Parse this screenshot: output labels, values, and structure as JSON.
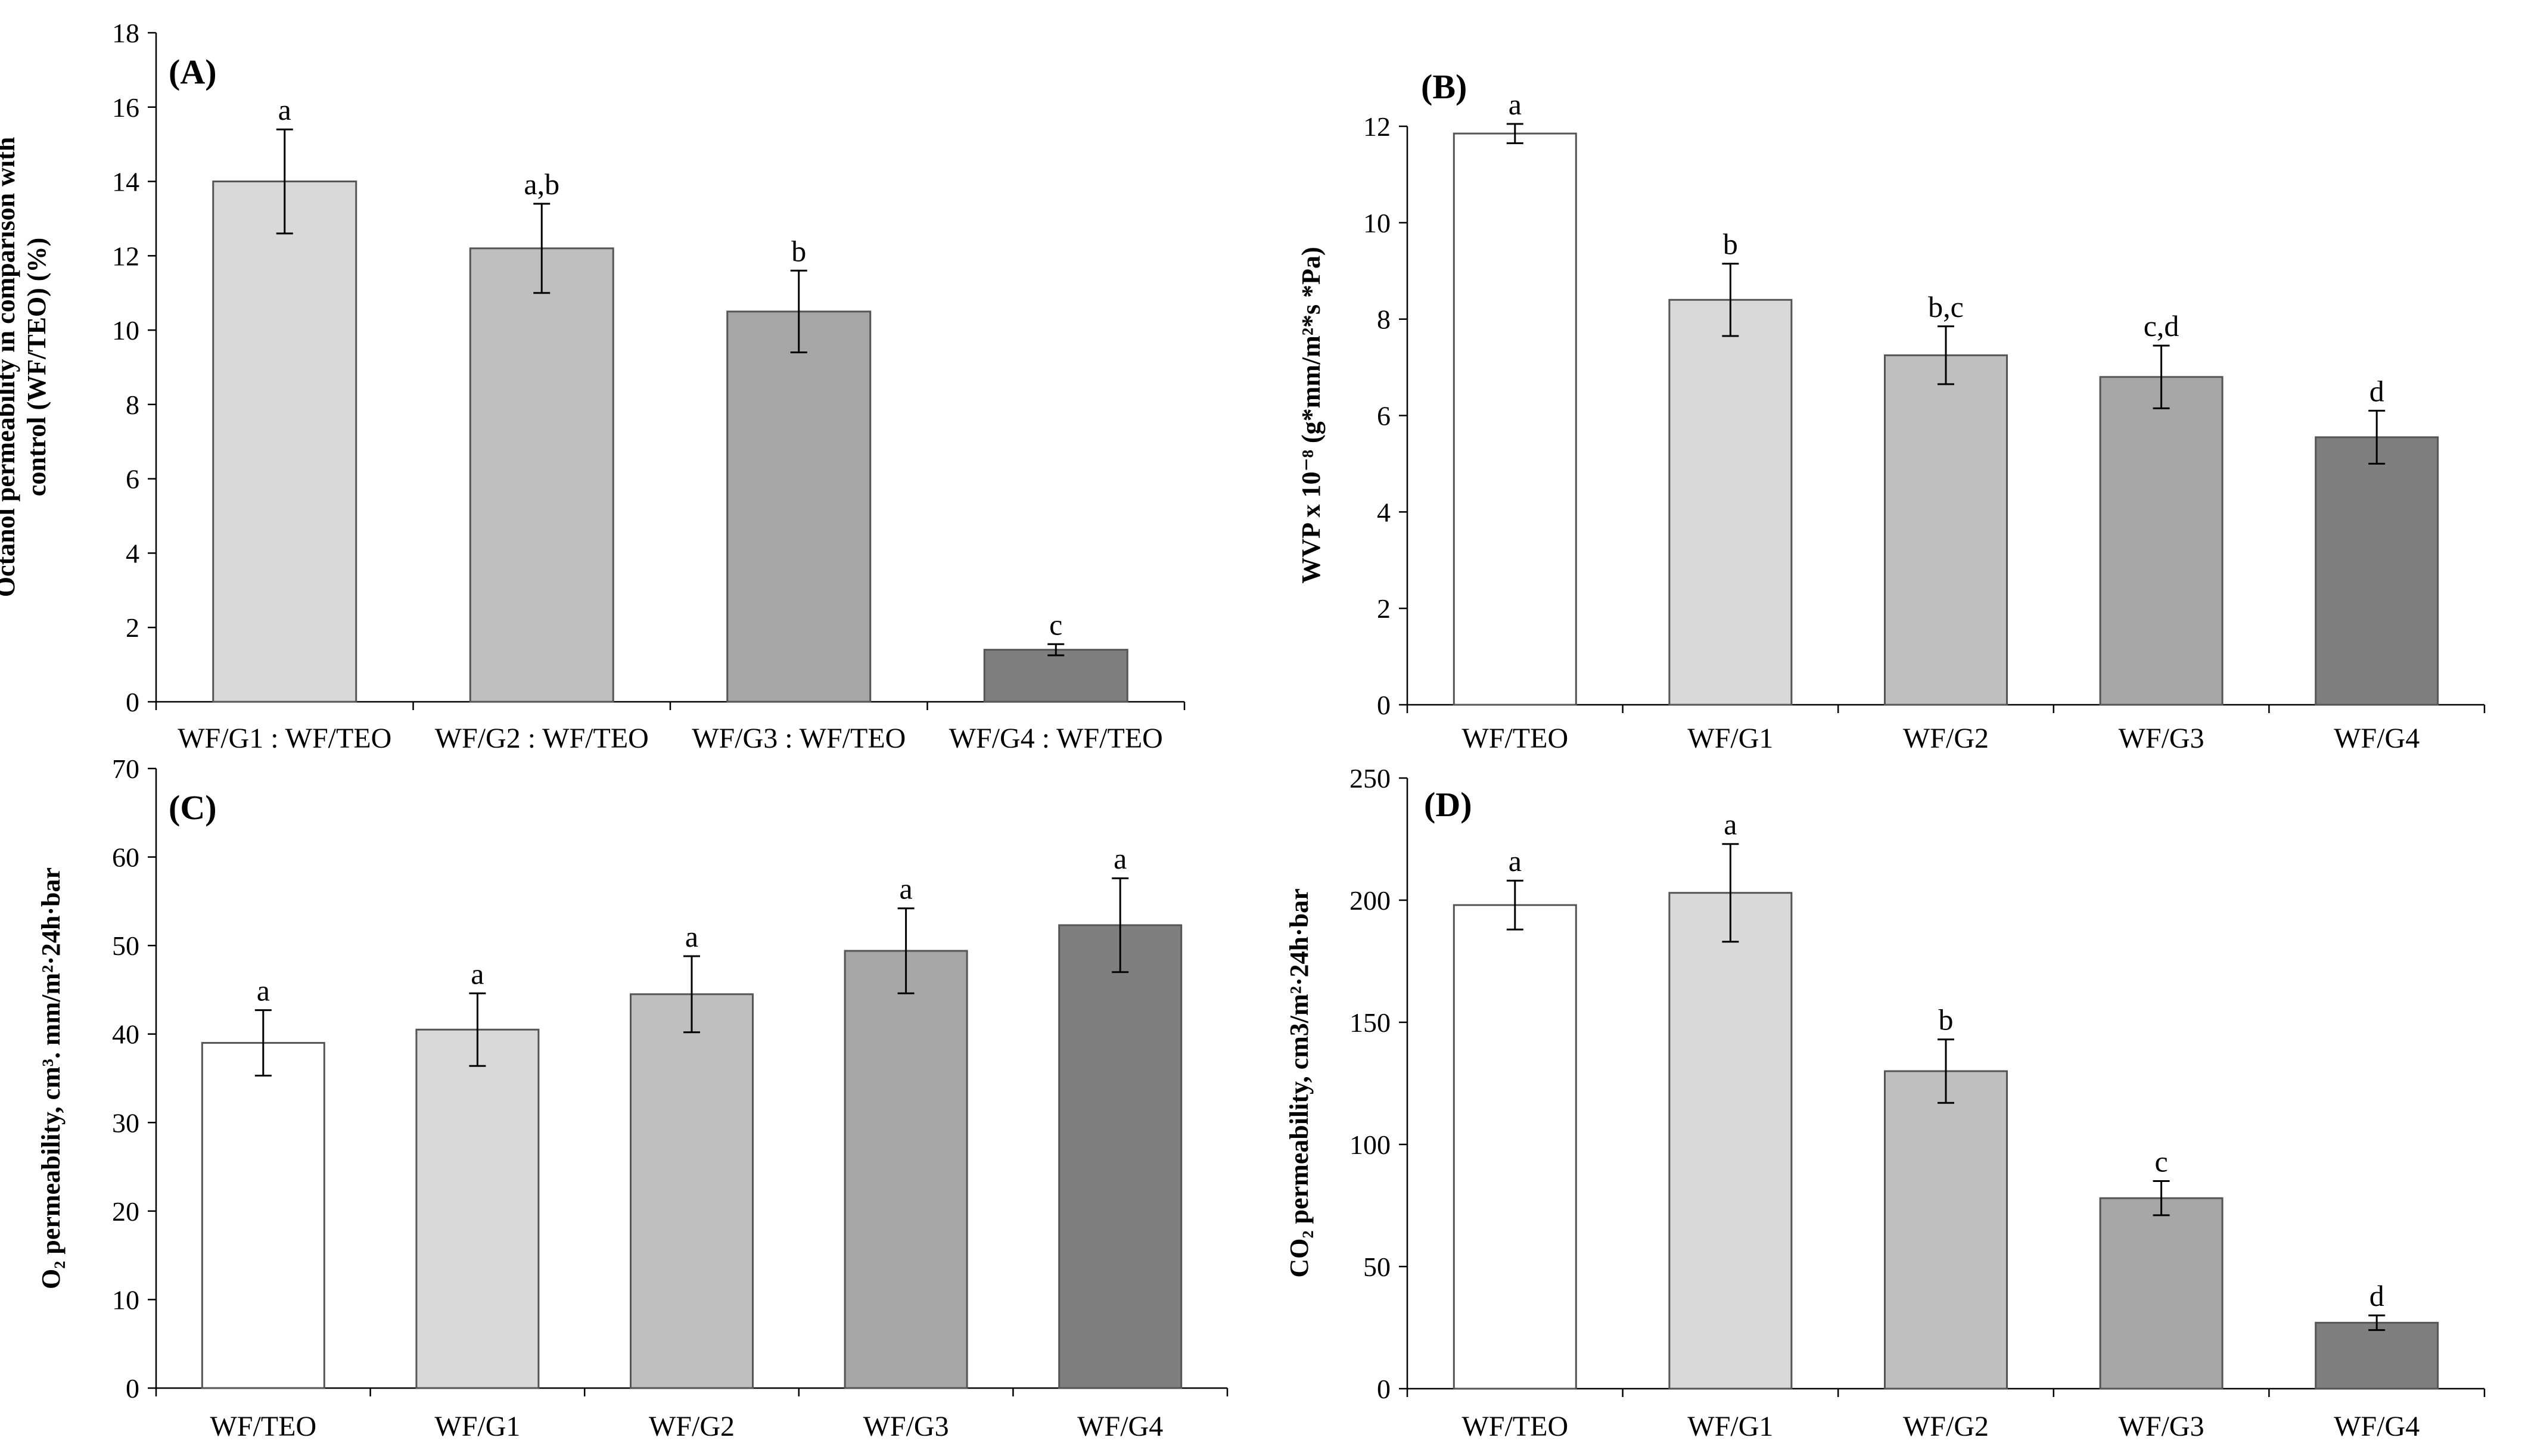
{
  "chart_data": [
    {
      "type": "bar",
      "panel": "(A)",
      "ylabel_lines": [
        "Octanol permeability in comparison with",
        "control (WF/TEO)  (%)"
      ],
      "ylim": [
        0,
        18
      ],
      "yticks": [
        "0",
        "2",
        "4",
        "6",
        "8",
        "10",
        "12",
        "14",
        "16",
        "18"
      ],
      "categories": [
        "WF/G1 : WF/TEO",
        "WF/G2 : WF/TEO",
        "WF/G3 : WF/TEO",
        "WF/G4 : WF/TEO"
      ],
      "values": [
        14.0,
        12.2,
        10.5,
        1.4
      ],
      "errors": [
        1.4,
        1.2,
        1.1,
        0.15
      ],
      "significance": [
        "a",
        "a,b",
        "b",
        "c"
      ],
      "colors": [
        "#d9d9d9",
        "#bfbfbf",
        "#a6a6a6",
        "#7f7f7f"
      ]
    },
    {
      "type": "bar",
      "panel": "(B)",
      "ylabel_lines": [
        "WVP x 10⁻⁸ (g*mm/m²*s *Pa)"
      ],
      "ylim": [
        0,
        12
      ],
      "yticks": [
        "0",
        "2",
        "4",
        "6",
        "8",
        "10",
        "12"
      ],
      "categories": [
        "WF/TEO",
        "WF/G1",
        "WF/G2",
        "WF/G3",
        "WF/G4"
      ],
      "values": [
        11.85,
        8.4,
        7.25,
        6.8,
        5.55
      ],
      "errors": [
        0.2,
        0.75,
        0.6,
        0.65,
        0.55
      ],
      "significance": [
        "a",
        "b",
        "b,c",
        "c,d",
        "d"
      ],
      "colors": [
        "#ffffff",
        "#d9d9d9",
        "#bfbfbf",
        "#a6a6a6",
        "#7f7f7f"
      ]
    },
    {
      "type": "bar",
      "panel": "(C)",
      "ylabel_lines": [
        "O₂ permeability, cm³. mm/m²·24h·bar"
      ],
      "ylim": [
        0,
        70
      ],
      "yticks": [
        "0",
        "10",
        "20",
        "30",
        "40",
        "50",
        "60",
        "70"
      ],
      "categories": [
        "WF/TEO",
        "WF/G1",
        "WF/G2",
        "WF/G3",
        "WF/G4"
      ],
      "values": [
        39.0,
        40.5,
        44.5,
        49.4,
        52.3
      ],
      "errors": [
        3.7,
        4.1,
        4.3,
        4.8,
        5.3
      ],
      "significance": [
        "a",
        "a",
        "a",
        "a",
        "a"
      ],
      "colors": [
        "#ffffff",
        "#d9d9d9",
        "#bfbfbf",
        "#a6a6a6",
        "#7f7f7f"
      ]
    },
    {
      "type": "bar",
      "panel": "(D)",
      "ylabel_lines": [
        "CO₂ permeability, cm3/m²·24h·bar"
      ],
      "ylim": [
        0,
        250
      ],
      "yticks": [
        "0",
        "50",
        "100",
        "150",
        "200",
        "250"
      ],
      "categories": [
        "WF/TEO",
        "WF/G1",
        "WF/G2",
        "WF/G3",
        "WF/G4"
      ],
      "values": [
        198,
        203,
        130,
        78,
        27
      ],
      "errors": [
        10,
        20,
        13,
        7,
        3
      ],
      "significance": [
        "a",
        "a",
        "b",
        "c",
        "d"
      ],
      "colors": [
        "#ffffff",
        "#d9d9d9",
        "#bfbfbf",
        "#a6a6a6",
        "#7f7f7f"
      ]
    }
  ]
}
